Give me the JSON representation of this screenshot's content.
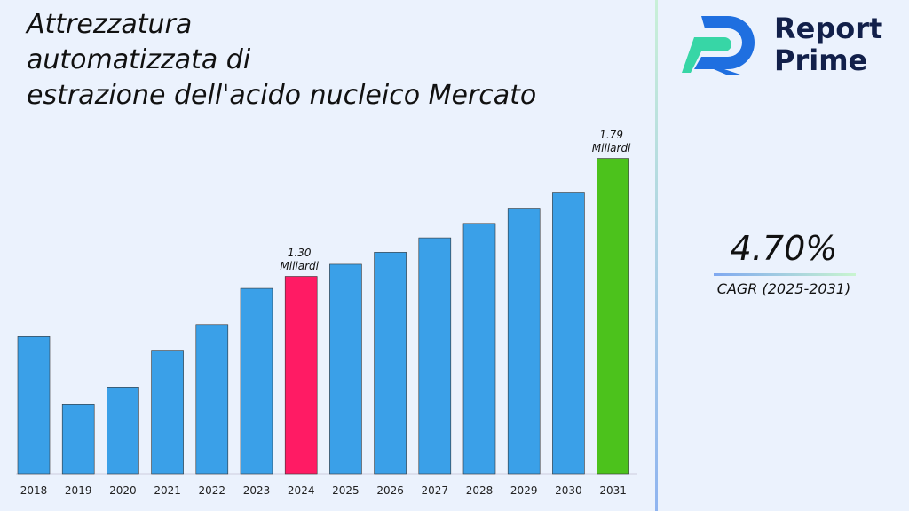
{
  "chart_data": {
    "type": "bar",
    "title": "Attrezzatura\nautomatizzata di\nestrazione dell'acido nucleico Mercato",
    "categories": [
      "2018",
      "2019",
      "2020",
      "2021",
      "2022",
      "2023",
      "2024",
      "2025",
      "2026",
      "2027",
      "2028",
      "2029",
      "2030",
      "2031"
    ],
    "values": [
      1.05,
      0.77,
      0.84,
      0.99,
      1.1,
      1.25,
      1.3,
      1.35,
      1.4,
      1.46,
      1.52,
      1.58,
      1.65,
      1.79
    ],
    "value_labels": [
      null,
      null,
      null,
      null,
      null,
      null,
      "1.30 Miliardi",
      null,
      null,
      null,
      null,
      null,
      null,
      "1.79 Miliardi"
    ],
    "colors": [
      "#3aa0e8",
      "#3aa0e8",
      "#3aa0e8",
      "#3aa0e8",
      "#3aa0e8",
      "#3aa0e8",
      "#ff1b64",
      "#3aa0e8",
      "#3aa0e8",
      "#3aa0e8",
      "#3aa0e8",
      "#3aa0e8",
      "#3aa0e8",
      "#4cc21c"
    ],
    "ylim": [
      0.48,
      1.98
    ]
  },
  "brand": {
    "line1": "Report",
    "line2": "Prime"
  },
  "cagr": {
    "value": "4.70%",
    "label": "CAGR (2025-2031)"
  }
}
